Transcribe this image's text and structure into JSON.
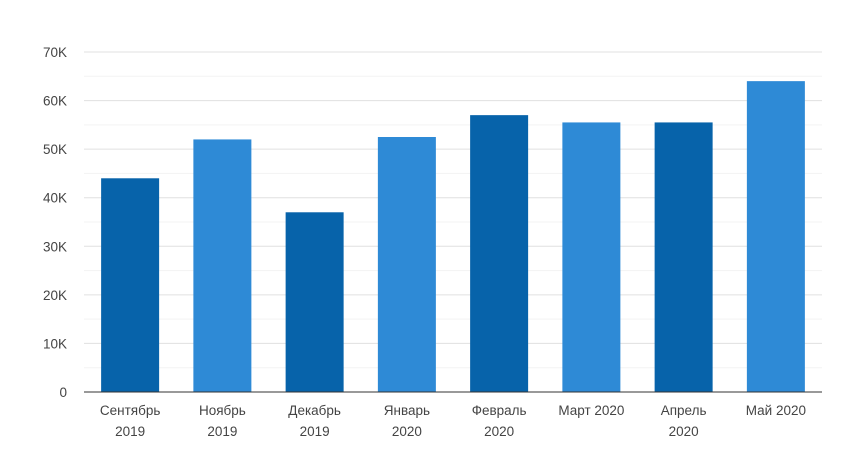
{
  "chart_data": {
    "type": "bar",
    "categories": [
      [
        "Сентябрь",
        "2019"
      ],
      [
        "Ноябрь",
        "2019"
      ],
      [
        "Декабрь",
        "2019"
      ],
      [
        "Январь",
        "2020"
      ],
      [
        "Февраль",
        "2020"
      ],
      [
        "Март 2020"
      ],
      [
        "Апрель",
        "2020"
      ],
      [
        "Май 2020"
      ]
    ],
    "values": [
      44000,
      52000,
      37000,
      52500,
      57000,
      55500,
      55500,
      64000
    ],
    "bar_colors": [
      "#0763aa",
      "#2e8ad6",
      "#0763aa",
      "#2e8ad6",
      "#0763aa",
      "#2e8ad6",
      "#0763aa",
      "#2e8ad6"
    ],
    "ylim": [
      0,
      70000
    ],
    "yticks": [
      0,
      10000,
      20000,
      30000,
      40000,
      50000,
      60000,
      70000
    ],
    "ytick_labels": [
      "0",
      "10K",
      "20K",
      "30K",
      "40K",
      "50K",
      "60K",
      "70K"
    ],
    "grid": true,
    "title": "",
    "xlabel": "",
    "ylabel": ""
  }
}
